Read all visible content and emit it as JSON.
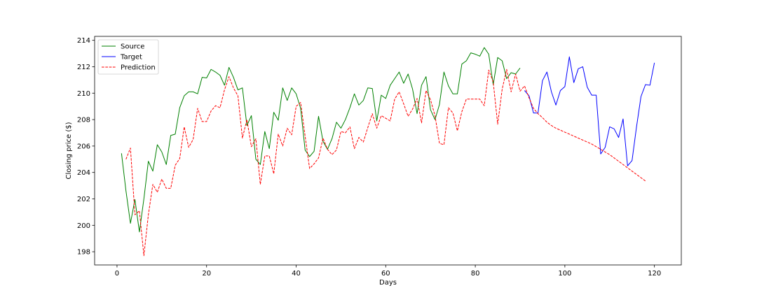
{
  "chart_data": {
    "type": "line",
    "xlabel": "Days",
    "ylabel": "Closing price ($)",
    "xlim": [
      -5,
      126
    ],
    "ylim": [
      197,
      214.3
    ],
    "xticks": [
      0,
      20,
      40,
      60,
      80,
      100,
      120
    ],
    "yticks": [
      198,
      200,
      202,
      204,
      206,
      208,
      210,
      212,
      214
    ],
    "legend_position": "top-left",
    "grid": false,
    "series": [
      {
        "name": "Source",
        "color": "#008000",
        "style": "solid",
        "x_start": 1,
        "values": [
          205.45,
          202.6,
          200.15,
          201.95,
          199.5,
          202.0,
          204.85,
          204.1,
          206.1,
          205.55,
          204.6,
          206.8,
          206.9,
          208.9,
          209.8,
          210.1,
          210.1,
          209.95,
          211.2,
          211.15,
          211.8,
          211.6,
          211.35,
          210.6,
          211.95,
          211.2,
          210.25,
          210.4,
          207.55,
          208.3,
          205.0,
          204.6,
          207.1,
          205.8,
          208.55,
          207.95,
          210.4,
          209.45,
          210.4,
          209.95,
          208.85,
          205.7,
          205.2,
          205.6,
          208.25,
          206.35,
          205.75,
          206.55,
          207.8,
          207.35,
          208.0,
          208.9,
          209.95,
          209.1,
          209.45,
          210.4,
          210.35,
          207.9,
          209.85,
          209.6,
          210.6,
          211.1,
          211.6,
          210.75,
          211.45,
          210.3,
          208.45,
          210.6,
          211.25,
          208.75,
          208.0,
          209.15,
          211.6,
          210.55,
          209.95,
          209.95,
          212.2,
          212.45,
          213.05,
          212.95,
          212.8,
          213.45,
          212.95,
          210.65,
          212.7,
          212.45,
          211.1,
          211.55,
          211.45,
          211.9
        ]
      },
      {
        "name": "Target",
        "color": "#0000ff",
        "style": "solid",
        "x_start": 91,
        "values": [
          210.2,
          209.8,
          208.5,
          208.5,
          210.95,
          211.6,
          210.1,
          209.1,
          210.2,
          210.5,
          212.75,
          210.8,
          211.85,
          212.0,
          210.45,
          209.85,
          209.85,
          205.4,
          205.9,
          207.45,
          207.3,
          206.65,
          208.05,
          204.5,
          204.9,
          207.45,
          209.75,
          210.65,
          210.6,
          212.3
        ]
      },
      {
        "name": "Prediction",
        "color": "#ff0000",
        "style": "dashed",
        "x_start": 2,
        "values": [
          205.0,
          205.85,
          200.8,
          201.1,
          197.7,
          200.8,
          203.1,
          202.5,
          203.5,
          202.8,
          202.8,
          204.55,
          205.05,
          207.45,
          205.9,
          206.5,
          208.85,
          207.85,
          207.85,
          208.65,
          209.05,
          208.9,
          210.25,
          211.25,
          210.4,
          209.8,
          206.6,
          208.0,
          205.95,
          206.55,
          203.1,
          205.25,
          205.25,
          203.9,
          206.9,
          206.0,
          207.35,
          206.85,
          209.0,
          209.3,
          206.75,
          204.3,
          204.65,
          205.1,
          206.6,
          205.75,
          205.35,
          205.7,
          207.1,
          207.0,
          207.45,
          205.8,
          206.65,
          206.3,
          207.4,
          208.45,
          207.35,
          208.3,
          208.1,
          207.9,
          209.55,
          210.1,
          209.2,
          208.25,
          208.8,
          209.6,
          207.75,
          210.2,
          209.5,
          208.3,
          206.2,
          206.1,
          208.9,
          208.5,
          207.15,
          208.6,
          209.55,
          209.55,
          209.55,
          209.55,
          209.05,
          211.75,
          210.85,
          207.65,
          210.3,
          211.8,
          210.1,
          211.45,
          210.15,
          210.55,
          209.65,
          208.85,
          208.45,
          208.15,
          207.8,
          207.55,
          207.35,
          207.2,
          207.05,
          206.9,
          206.75,
          206.6,
          206.45,
          206.3,
          206.15,
          205.95,
          205.75,
          205.55,
          205.35,
          205.1,
          204.85,
          204.6,
          204.35,
          204.1,
          203.85,
          203.6,
          203.35
        ]
      }
    ]
  }
}
